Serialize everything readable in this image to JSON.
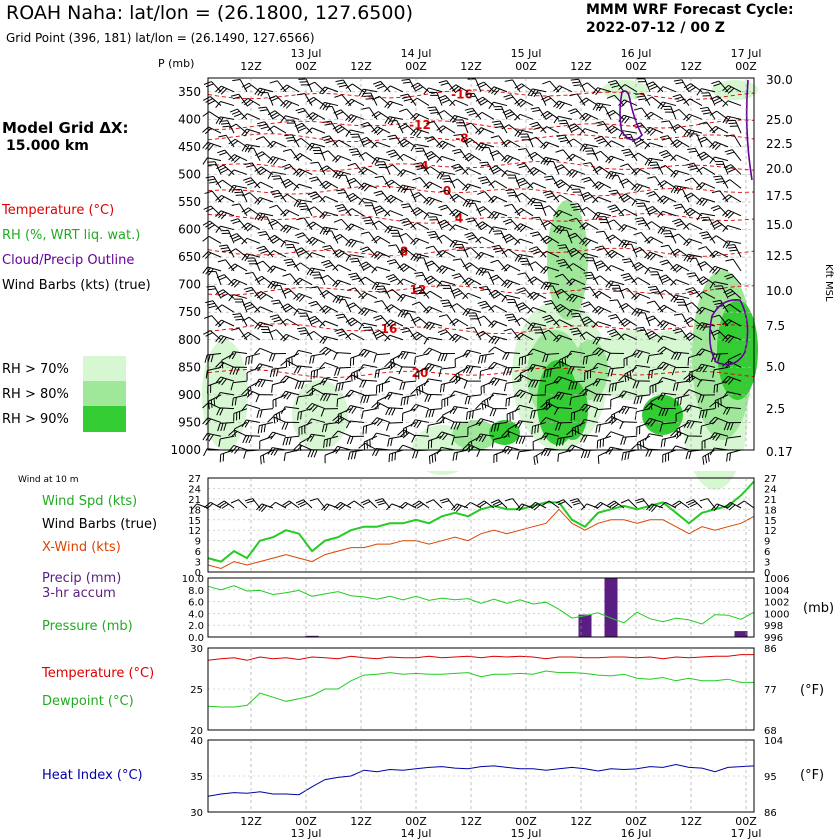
{
  "header": {
    "title": "ROAH Naha:  lat/lon = (26.1800, 127.6500)",
    "subtitle": "Grid Point (396, 181) lat/lon = (26.1490, 127.6566)",
    "cycle_line1": "MMM WRF Forecast Cycle:",
    "cycle_line2": "2022-07-12 / 00  Z",
    "grid_dx_line1": "Model Grid ΔX:",
    "grid_dx_line2": "15.000 km"
  },
  "colors": {
    "temperature": "#dd0000",
    "rh": "#22bb22",
    "cloud": "#660099",
    "barb": "#000000",
    "xwind": "#dd4400",
    "precip": "#5a1e82",
    "heat_index": "#0000aa",
    "rh70": "#d6f7d2",
    "rh80": "#9fe89a",
    "rh90": "#33cc33"
  },
  "legend": {
    "temperature": "Temperature (°C)",
    "rh": "RH (%, WRT liq. wat.)",
    "cloud": "Cloud/Precip Outline",
    "barbs": "Wind Barbs (kts) (true)",
    "rh70": "RH > 70%",
    "rh80": "RH > 80%",
    "rh90": "RH > 90%"
  },
  "time_axis": {
    "ticks": [
      "12Z",
      "00Z",
      "12Z",
      "00Z",
      "12Z",
      "00Z",
      "12Z",
      "00Z",
      "12Z",
      "00Z"
    ],
    "days": [
      "13 Jul",
      "14 Jul",
      "15 Jul",
      "16 Jul",
      "17 Jul"
    ]
  },
  "chart_data": [
    {
      "type": "heatmap",
      "name": "sounding",
      "y_label": "P (mb)",
      "y_right_label": "Kft MSL",
      "pressure_ticks": [
        "350",
        "400",
        "450",
        "500",
        "550",
        "600",
        "650",
        "700",
        "750",
        "800",
        "850",
        "900",
        "950",
        "1000"
      ],
      "height_ticks": [
        "30.0",
        "25.0",
        "22.5",
        "20.0",
        "17.5",
        "15.0",
        "12.5",
        "10.0",
        "7.5",
        "5.0",
        "2.5",
        "0.17"
      ],
      "isotherms": [
        {
          "label": "-16",
          "p": 355
        },
        {
          "label": "-12",
          "p": 410
        },
        {
          "label": "-8",
          "p": 435
        },
        {
          "label": "-4",
          "p": 485
        },
        {
          "label": "0",
          "p": 530
        },
        {
          "label": "4",
          "p": 580
        },
        {
          "label": "8",
          "p": 640
        },
        {
          "label": "12",
          "p": 710
        },
        {
          "label": "16",
          "p": 780
        },
        {
          "label": "20",
          "p": 860
        }
      ]
    },
    {
      "type": "line",
      "name": "wind10m",
      "title": "Wind at 10 m",
      "labels": {
        "spd": "Wind Spd (kts)",
        "barbs": "Wind Barbs (true)",
        "xwind": "X-Wind (kts)"
      },
      "y_ticks": [
        "27",
        "24",
        "21",
        "18",
        "15",
        "12",
        "9",
        "6",
        "3",
        "0"
      ],
      "ylim": [
        0,
        27
      ],
      "series": [
        {
          "key": "spd",
          "values": [
            4,
            3,
            6,
            4,
            9,
            10,
            12,
            11,
            6,
            9,
            10,
            12,
            13,
            13,
            14,
            14,
            15,
            14,
            16,
            17,
            16,
            18,
            19,
            18,
            18,
            19,
            20,
            20,
            15,
            13,
            17,
            18,
            19,
            18,
            19,
            20,
            17,
            14,
            17,
            18,
            19,
            22,
            26
          ]
        },
        {
          "key": "xwind",
          "values": [
            2,
            1,
            3,
            2,
            3,
            4,
            5,
            4,
            3,
            5,
            6,
            7,
            7,
            8,
            8,
            9,
            9,
            8,
            9,
            10,
            9,
            11,
            12,
            11,
            12,
            13,
            14,
            18,
            14,
            12,
            14,
            15,
            15,
            14,
            15,
            15,
            13,
            11,
            13,
            12,
            13,
            14,
            16
          ]
        }
      ]
    },
    {
      "type": "bar",
      "name": "precip_pressure",
      "labels": {
        "precip": "Precip (mm)",
        "accum": "3-hr accum",
        "pressure": "Pressure (mb)"
      },
      "y_ticks_left": [
        "10.0",
        "8.0",
        "6.0",
        "4.0",
        "2.0",
        "0.0"
      ],
      "y_ticks_right": [
        "1006",
        "1004",
        "1002",
        "1000",
        "998",
        "996"
      ],
      "precip_ylim": [
        0,
        10
      ],
      "pressure_ylim": [
        996,
        1006
      ],
      "precip": [
        {
          "i": 8,
          "v": 0.2
        },
        {
          "i": 29,
          "v": 3.8
        },
        {
          "i": 31,
          "v": 10.0
        },
        {
          "i": 41,
          "v": 1.0
        }
      ],
      "pressure": [
        1004.6,
        1004.0,
        1004.7,
        1003.8,
        1003.9,
        1003.2,
        1003.5,
        1003.9,
        1002.9,
        1003.3,
        1003.7,
        1003.0,
        1002.8,
        1002.4,
        1002.9,
        1002.3,
        1002.9,
        1002.2,
        1002.6,
        1002.3,
        1002.5,
        1001.7,
        1002.4,
        1001.7,
        1002.3,
        1001.6,
        1001.9,
        1000.7,
        999.2,
        999.6,
        1000.1,
        999.2,
        998.4,
        1000.2,
        999.1,
        998.6,
        999.2,
        998.9,
        998.2,
        999.8,
        999.7,
        999.0,
        1000.2
      ]
    },
    {
      "type": "line",
      "name": "temp_dew",
      "labels": {
        "temperature": "Temperature (°C)",
        "dewpoint": "Dewpoint (°C)"
      },
      "y_ticks_left": [
        "30",
        "25",
        "20"
      ],
      "y_ticks_right": [
        "86",
        "77",
        "68"
      ],
      "right_unit": "(°F)",
      "ylim": [
        20,
        30
      ],
      "series": [
        {
          "key": "temperature",
          "values": [
            28.5,
            28.7,
            28.8,
            28.5,
            28.9,
            28.7,
            28.8,
            28.6,
            28.9,
            28.8,
            28.7,
            29.0,
            28.8,
            28.7,
            28.9,
            28.8,
            28.8,
            29.0,
            28.8,
            28.9,
            29.0,
            28.8,
            29.0,
            28.9,
            29.0,
            28.9,
            28.7,
            28.9,
            28.9,
            28.8,
            28.8,
            28.9,
            28.9,
            28.8,
            28.9,
            28.7,
            28.9,
            28.8,
            28.9,
            29.0,
            29.0,
            29.2,
            29.2
          ]
        },
        {
          "key": "dewpoint",
          "values": [
            22.9,
            22.8,
            22.8,
            23.0,
            24.5,
            24.0,
            23.5,
            23.8,
            24.2,
            25.0,
            25.0,
            26.0,
            26.7,
            26.8,
            27.0,
            26.8,
            26.9,
            26.8,
            26.8,
            26.9,
            27.0,
            26.5,
            26.8,
            26.8,
            26.9,
            26.8,
            27.2,
            27.0,
            27.0,
            26.9,
            26.7,
            26.6,
            26.8,
            26.3,
            26.2,
            26.4,
            26.0,
            26.3,
            26.0,
            26.0,
            26.2,
            25.8,
            25.8
          ]
        }
      ]
    },
    {
      "type": "line",
      "name": "heat_index",
      "labels": {
        "heat_index": "Heat Index (°C)"
      },
      "y_ticks_left": [
        "40",
        "35",
        "30"
      ],
      "y_ticks_right": [
        "104",
        "95",
        "86"
      ],
      "right_unit": "(°F)",
      "ylim": [
        30,
        40
      ],
      "series": [
        {
          "key": "heat_index",
          "values": [
            32.2,
            32.5,
            32.7,
            32.6,
            32.8,
            32.5,
            32.5,
            32.4,
            33.5,
            34.5,
            34.8,
            35.0,
            35.8,
            35.6,
            35.9,
            35.8,
            36.0,
            36.2,
            36.3,
            36.1,
            36.0,
            36.3,
            36.4,
            36.2,
            36.0,
            36.0,
            35.8,
            36.0,
            36.2,
            36.0,
            35.7,
            36.0,
            35.9,
            36.0,
            36.3,
            36.2,
            36.6,
            36.2,
            36.1,
            35.6,
            36.2,
            36.3,
            36.4
          ]
        }
      ]
    }
  ]
}
